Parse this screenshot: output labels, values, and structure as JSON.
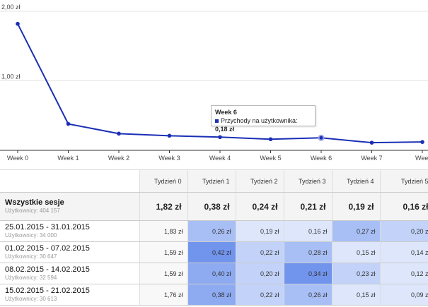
{
  "chart_data": {
    "type": "line",
    "categories": [
      "Week 0",
      "Week 1",
      "Week 2",
      "Week 3",
      "Week 4",
      "Week 5",
      "Week 6",
      "Week 7",
      "Week"
    ],
    "values": [
      1.82,
      0.38,
      0.24,
      0.21,
      0.19,
      0.16,
      0.18,
      0.11,
      0.12
    ],
    "y_ticks": [
      "2,00 zł",
      "1,00 zł"
    ],
    "ylim": [
      0,
      2
    ],
    "color": "#1a2fb5",
    "grid": true,
    "tooltip": {
      "title": "Week 6",
      "label": "Przychody na użytkownika:",
      "value": "0,18 zł"
    }
  },
  "table": {
    "columns": [
      "Tydzień 0",
      "Tydzień 1",
      "Tydzień 2",
      "Tydzień 3",
      "Tydzień 4",
      "Tydzień 5"
    ],
    "total": {
      "title": "Wszystkie sesje",
      "sub": "Użytkownicy: 404 157",
      "values": [
        "1,82 zł",
        "0,38 zł",
        "0,24 zł",
        "0,21 zł",
        "0,19 zł",
        "0,16 zł"
      ]
    },
    "rows": [
      {
        "title": "25.01.2015 - 31.01.2015",
        "sub": "Użytkownicy: 34 000",
        "values": [
          "1,83 zł",
          "0,26 zł",
          "0,19 zł",
          "0,16 zł",
          "0,27 zł",
          "0,20 zł"
        ],
        "shades": [
          0,
          3,
          1,
          1,
          3,
          2
        ]
      },
      {
        "title": "01.02.2015 - 07.02.2015",
        "sub": "Użytkownicy: 30 647",
        "values": [
          "1,59 zł",
          "0,42 zł",
          "0,22 zł",
          "0,28 zł",
          "0,15 zł",
          "0,14 zł"
        ],
        "shades": [
          0,
          5,
          2,
          3,
          1,
          1
        ]
      },
      {
        "title": "08.02.2015 - 14.02.2015",
        "sub": "Użytkownicy: 32 594",
        "values": [
          "1,59 zł",
          "0,40 zł",
          "0,20 zł",
          "0,34 zł",
          "0,23 zł",
          "0,12 zł"
        ],
        "shades": [
          0,
          4,
          2,
          5,
          2,
          1
        ]
      },
      {
        "title": "15.02.2015 - 21.02.2015",
        "sub": "Użytkownicy: 30 613",
        "values": [
          "1,76 zł",
          "0,38 zł",
          "0,22 zł",
          "0,26 zł",
          "0,15 zł",
          "0,09 zł"
        ],
        "shades": [
          0,
          4,
          2,
          3,
          1,
          1
        ]
      }
    ]
  }
}
